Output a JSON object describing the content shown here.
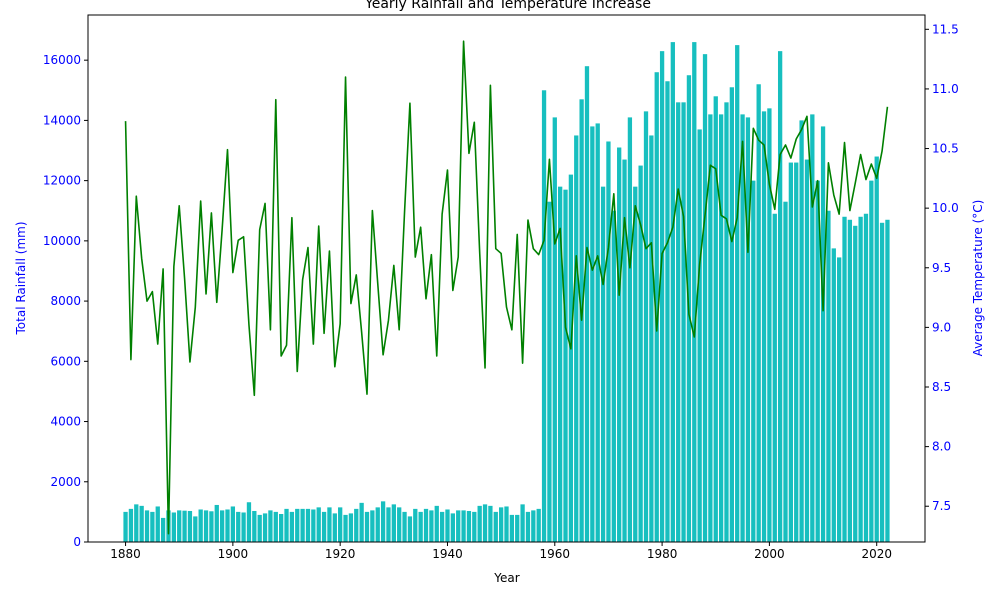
{
  "chart_data": {
    "type": "bar+line",
    "title": "Yearly Rainfall and Temperature Increase",
    "xlabel": "Year",
    "ylabel_left": "Total Rainfall (mm)",
    "ylabel_right": "Average Temperature (°C)",
    "xlim": [
      1873,
      2029
    ],
    "ylim_left": [
      0,
      17500
    ],
    "ylim_right": [
      7.2,
      11.62
    ],
    "x_ticks": [
      1880,
      1900,
      1920,
      1940,
      1960,
      1980,
      2000,
      2020
    ],
    "y_left_ticks": [
      0,
      2000,
      4000,
      6000,
      8000,
      10000,
      12000,
      14000,
      16000
    ],
    "y_right_ticks": [
      7.5,
      8.0,
      8.5,
      9.0,
      9.5,
      10.0,
      10.5,
      11.0,
      11.5
    ],
    "grid": false,
    "legend": "none",
    "colors": {
      "rainfall_bars": "#17bfbf",
      "temperature_line": "#008000",
      "left_axis": "#0000ff",
      "right_axis": "#0000ff"
    },
    "years": [
      1880,
      2022
    ],
    "series": [
      {
        "kind": "bar",
        "axis": "left",
        "values": [
          1000,
          1100,
          1250,
          1200,
          1050,
          1000,
          1180,
          800,
          1050,
          980,
          1050,
          1040,
          1030,
          850,
          1080,
          1050,
          1020,
          1230,
          1050,
          1080,
          1180,
          1000,
          980,
          1320,
          1030,
          900,
          950,
          1050,
          1000,
          930,
          1100,
          1000,
          1100,
          1100,
          1100,
          1080,
          1150,
          1000,
          1150,
          950,
          1150,
          900,
          950,
          1100,
          1300,
          1000,
          1050,
          1150,
          1350,
          1150,
          1250,
          1150,
          1000,
          850,
          1100,
          1000,
          1100,
          1050,
          1200,
          1000,
          1080,
          950,
          1050,
          1050,
          1030,
          1000,
          1200,
          1250,
          1200,
          1000,
          1150,
          1180,
          900,
          900,
          1250,
          1000,
          1050,
          1100,
          15000,
          11300,
          14100,
          11800,
          11700,
          12200,
          13500,
          14700,
          15800,
          13800,
          13900,
          11800,
          13300,
          11000,
          13100,
          12700,
          14100,
          11800,
          12500,
          14300,
          13500,
          15600,
          16300,
          15300,
          16600,
          14600,
          14600,
          15500,
          16600,
          13700,
          16200,
          14200,
          14800,
          14200,
          14600,
          15100,
          16500,
          14200,
          14100,
          12000,
          15200,
          14300,
          14400,
          10900,
          16300,
          11300,
          12600,
          12600,
          14000,
          12700,
          14200,
          12000,
          13800,
          11000,
          9750,
          9450,
          10800,
          10700,
          10500,
          10800,
          10900,
          12000,
          12800,
          10600,
          10700
        ]
      },
      {
        "kind": "line",
        "axis": "right",
        "values": [
          10.73,
          8.73,
          10.1,
          9.58,
          9.22,
          9.3,
          8.86,
          9.49,
          7.27,
          9.51,
          10.02,
          9.41,
          8.71,
          9.17,
          10.06,
          9.28,
          9.96,
          9.21,
          9.82,
          10.49,
          9.46,
          9.73,
          9.76,
          9.02,
          8.43,
          9.82,
          10.04,
          8.98,
          10.91,
          8.76,
          8.85,
          9.92,
          8.63,
          9.4,
          9.67,
          8.86,
          9.85,
          8.95,
          9.64,
          8.67,
          9.03,
          11.1,
          9.2,
          9.44,
          8.96,
          8.44,
          9.98,
          9.37,
          8.77,
          9.06,
          9.52,
          8.98,
          9.97,
          10.88,
          9.59,
          9.84,
          9.24,
          9.61,
          8.76,
          9.95,
          10.32,
          9.31,
          9.59,
          11.4,
          10.46,
          10.72,
          9.63,
          8.66,
          11.03,
          9.66,
          9.62,
          9.17,
          8.98,
          9.78,
          8.7,
          9.9,
          9.66,
          9.61,
          9.73,
          10.41,
          9.7,
          9.83,
          9.0,
          8.82,
          9.6,
          9.06,
          9.67,
          9.48,
          9.6,
          9.36,
          9.67,
          10.12,
          9.27,
          9.92,
          9.5,
          10.02,
          9.86,
          9.66,
          9.71,
          8.97,
          9.62,
          9.71,
          9.84,
          10.16,
          9.93,
          9.11,
          8.92,
          9.53,
          9.94,
          10.36,
          10.33,
          9.94,
          9.91,
          9.72,
          9.92,
          10.56,
          9.63,
          10.67,
          10.57,
          10.53,
          10.2,
          9.99,
          10.45,
          10.53,
          10.42,
          10.58,
          10.66,
          10.77,
          10.01,
          10.23,
          9.14,
          10.38,
          10.11,
          9.95,
          10.55,
          9.98,
          10.21,
          10.45,
          10.24,
          10.37,
          10.25,
          10.48,
          10.85
        ]
      }
    ]
  }
}
